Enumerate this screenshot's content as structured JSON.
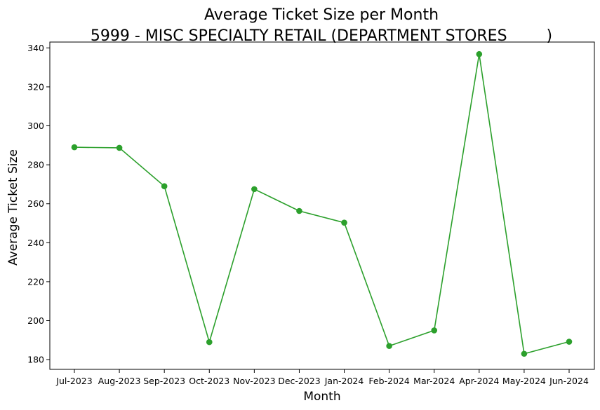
{
  "chart_data": {
    "type": "line",
    "title": "Average Ticket Size per Month",
    "subtitle": "5999 - MISC SPECIALTY RETAIL (DEPARTMENT STORES        )",
    "xlabel": "Month",
    "ylabel": "Average Ticket Size",
    "categories": [
      "Jul-2023",
      "Aug-2023",
      "Sep-2023",
      "Oct-2023",
      "Nov-2023",
      "Dec-2023",
      "Jan-2024",
      "Feb-2024",
      "Mar-2024",
      "Apr-2024",
      "May-2024",
      "Jun-2024"
    ],
    "series": [
      {
        "color": "#2ca02c",
        "values": [
          289,
          288.7,
          269,
          189,
          267.5,
          256.3,
          250.3,
          187,
          195,
          336.8,
          183,
          189.2
        ]
      }
    ],
    "yticks": [
      180,
      200,
      220,
      240,
      260,
      280,
      300,
      320,
      340
    ],
    "ylim": [
      175,
      343
    ],
    "grid": false,
    "legend": "none"
  }
}
